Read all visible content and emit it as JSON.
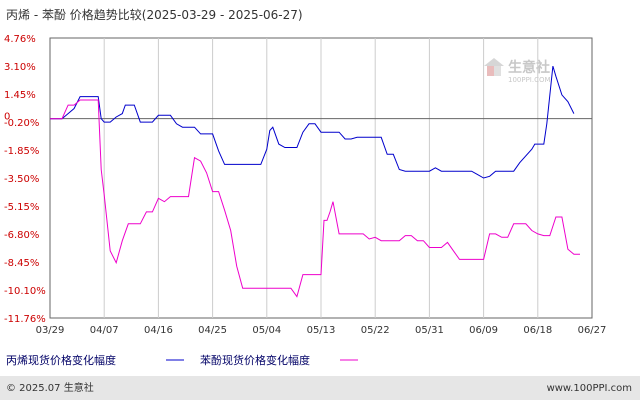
{
  "chart_data": {
    "type": "line",
    "title": "丙烯 - 苯酚 价格趋势比较(2025-03-29 - 2025-06-27)",
    "y_ticks": [
      "4.76%",
      "3.10%",
      "1.45%",
      "-0.20%",
      "-1.85%",
      "-3.50%",
      "-5.15%",
      "-6.80%",
      "-8.45%",
      "-10.10%",
      "-11.76%"
    ],
    "y_tick_values": [
      4.76,
      3.1,
      1.45,
      -0.2,
      -1.85,
      -3.5,
      -5.15,
      -6.8,
      -8.45,
      -10.1,
      -11.76
    ],
    "zero_label": "0",
    "ylim": [
      -11.76,
      4.76
    ],
    "x_ticks": [
      "03/29",
      "04/07",
      "04/16",
      "04/25",
      "05/04",
      "05/13",
      "05/22",
      "05/31",
      "06/09",
      "06/18",
      "06/27"
    ],
    "x_tick_days": [
      0,
      9,
      18,
      27,
      36,
      45,
      54,
      63,
      72,
      81,
      90
    ],
    "xlim": [
      0,
      90
    ],
    "grid": "x",
    "series": [
      {
        "name": "丙烯现货价格变化幅度",
        "color": "#0000cc",
        "points": [
          [
            0,
            0
          ],
          [
            2,
            0
          ],
          [
            3,
            0.3
          ],
          [
            4,
            0.6
          ],
          [
            5,
            1.3
          ],
          [
            7,
            1.3
          ],
          [
            8,
            1.3
          ],
          [
            8.5,
            0
          ],
          [
            9,
            -0.2
          ],
          [
            10,
            -0.2
          ],
          [
            11,
            0.1
          ],
          [
            12,
            0.3
          ],
          [
            12.5,
            0.8
          ],
          [
            14,
            0.8
          ],
          [
            15,
            -0.2
          ],
          [
            17,
            -0.2
          ],
          [
            18,
            0.2
          ],
          [
            20,
            0.2
          ],
          [
            21,
            -0.3
          ],
          [
            22,
            -0.5
          ],
          [
            24,
            -0.5
          ],
          [
            25,
            -0.9
          ],
          [
            27,
            -0.9
          ],
          [
            28,
            -1.9
          ],
          [
            29,
            -2.7
          ],
          [
            35,
            -2.7
          ],
          [
            36,
            -1.8
          ],
          [
            36.5,
            -0.7
          ],
          [
            37,
            -0.5
          ],
          [
            38,
            -1.5
          ],
          [
            39,
            -1.7
          ],
          [
            41,
            -1.7
          ],
          [
            42,
            -0.8
          ],
          [
            43,
            -0.3
          ],
          [
            44,
            -0.3
          ],
          [
            45,
            -0.8
          ],
          [
            48,
            -0.8
          ],
          [
            49,
            -1.2
          ],
          [
            50,
            -1.2
          ],
          [
            51,
            -1.1
          ],
          [
            55,
            -1.1
          ],
          [
            56,
            -2.1
          ],
          [
            57,
            -2.1
          ],
          [
            58,
            -3.0
          ],
          [
            59,
            -3.1
          ],
          [
            63,
            -3.1
          ],
          [
            64,
            -2.9
          ],
          [
            65,
            -3.1
          ],
          [
            70,
            -3.1
          ],
          [
            71,
            -3.3
          ],
          [
            72,
            -3.5
          ],
          [
            73,
            -3.4
          ],
          [
            74,
            -3.1
          ],
          [
            77,
            -3.1
          ],
          [
            78,
            -2.6
          ],
          [
            80,
            -1.8
          ],
          [
            80.5,
            -1.5
          ],
          [
            82,
            -1.5
          ],
          [
            82.5,
            -0.3
          ],
          [
            83.5,
            3.1
          ],
          [
            84,
            2.5
          ],
          [
            85,
            1.4
          ],
          [
            86,
            1.0
          ],
          [
            87,
            0.3
          ]
        ]
      },
      {
        "name": "苯酚现货价格变化幅度",
        "color": "#ee00cc",
        "points": [
          [
            0,
            0
          ],
          [
            2,
            0
          ],
          [
            3,
            0.8
          ],
          [
            4,
            0.8
          ],
          [
            5,
            1.1
          ],
          [
            8,
            1.1
          ],
          [
            8.5,
            -3.0
          ],
          [
            9,
            -4.5
          ],
          [
            10,
            -7.8
          ],
          [
            11,
            -8.5
          ],
          [
            12,
            -7.2
          ],
          [
            13,
            -6.2
          ],
          [
            15,
            -6.2
          ],
          [
            16,
            -5.5
          ],
          [
            17,
            -5.5
          ],
          [
            18,
            -4.7
          ],
          [
            19,
            -4.9
          ],
          [
            20,
            -4.6
          ],
          [
            23,
            -4.6
          ],
          [
            24,
            -2.3
          ],
          [
            25,
            -2.5
          ],
          [
            26,
            -3.2
          ],
          [
            27,
            -4.3
          ],
          [
            28,
            -4.3
          ],
          [
            29,
            -5.4
          ],
          [
            30,
            -6.6
          ],
          [
            31,
            -8.7
          ],
          [
            32,
            -10.0
          ],
          [
            40,
            -10.0
          ],
          [
            41,
            -10.5
          ],
          [
            42,
            -9.2
          ],
          [
            45,
            -9.2
          ],
          [
            45.5,
            -6.0
          ],
          [
            46,
            -6.0
          ],
          [
            46.5,
            -5.5
          ],
          [
            47,
            -4.9
          ],
          [
            48,
            -6.8
          ],
          [
            52,
            -6.8
          ],
          [
            53,
            -7.1
          ],
          [
            54,
            -7.0
          ],
          [
            55,
            -7.2
          ],
          [
            58,
            -7.2
          ],
          [
            59,
            -6.9
          ],
          [
            60,
            -6.9
          ],
          [
            61,
            -7.2
          ],
          [
            62,
            -7.2
          ],
          [
            63,
            -7.6
          ],
          [
            65,
            -7.6
          ],
          [
            66,
            -7.3
          ],
          [
            67,
            -7.8
          ],
          [
            68,
            -8.3
          ],
          [
            72,
            -8.3
          ],
          [
            73,
            -6.8
          ],
          [
            74,
            -6.8
          ],
          [
            75,
            -7.0
          ],
          [
            76,
            -7.0
          ],
          [
            77,
            -6.2
          ],
          [
            79,
            -6.2
          ],
          [
            80,
            -6.6
          ],
          [
            81,
            -6.8
          ],
          [
            82,
            -6.9
          ],
          [
            83,
            -6.9
          ],
          [
            84,
            -5.8
          ],
          [
            85,
            -5.8
          ],
          [
            86,
            -7.7
          ],
          [
            87,
            -8.0
          ],
          [
            88,
            -8.0
          ]
        ]
      }
    ]
  },
  "legend": {
    "items": [
      {
        "label": "丙烯现货价格变化幅度",
        "color": "#0000cc"
      },
      {
        "label": "苯酚现货价格变化幅度",
        "color": "#ee00cc"
      }
    ]
  },
  "watermark": {
    "main": "生意社",
    "sub": "100PPI.COM"
  },
  "footer": {
    "left": "© 2025.07 生意社",
    "right": "www.100PPI.com"
  },
  "colors": {
    "frame": "#666666",
    "grid": "#cccccc",
    "zero_line": "#666666",
    "footer_bg": "#e6e6e6"
  }
}
